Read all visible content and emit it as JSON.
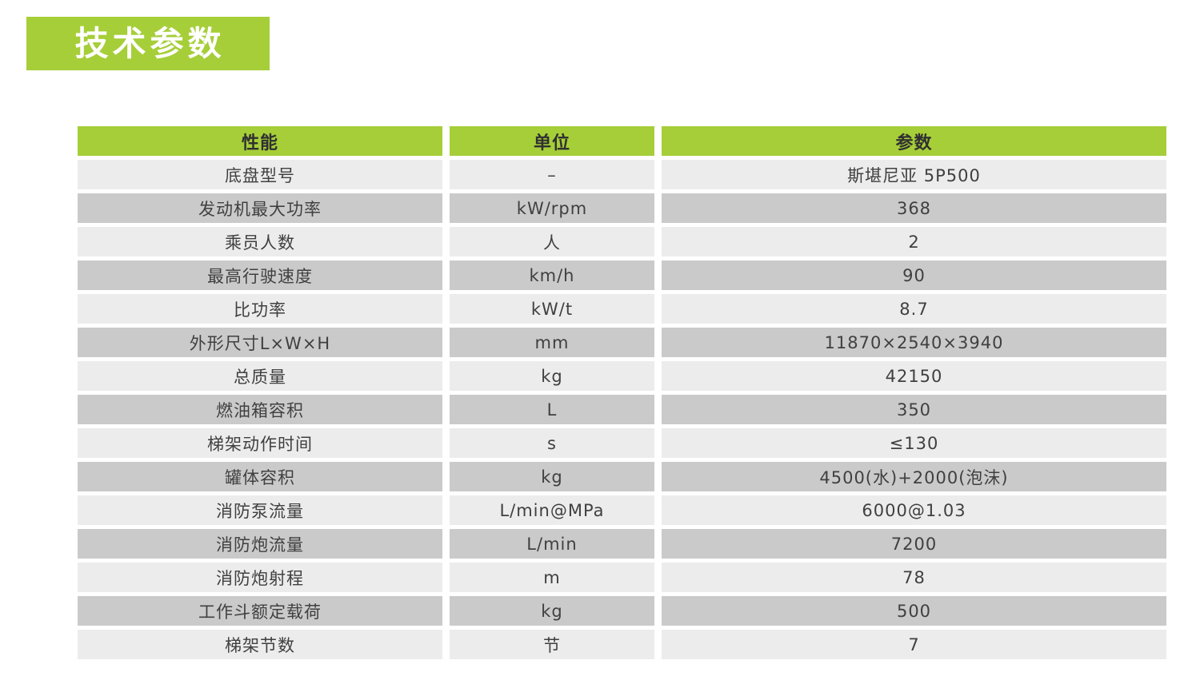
{
  "title": {
    "text": "技术参数"
  },
  "colors": {
    "accent_green": "#a6ce39",
    "row_light": "#ececec",
    "row_dark": "#cacaca",
    "title_text": "#ffffff",
    "cell_text": "#404040"
  },
  "table": {
    "headers": [
      "性能",
      "单位",
      "参数"
    ],
    "rows": [
      {
        "name": "底盘型号",
        "unit": "–",
        "value": "斯堪尼亚 5P500"
      },
      {
        "name": "发动机最大功率",
        "unit": "kW/rpm",
        "value": "368"
      },
      {
        "name": "乘员人数",
        "unit": "人",
        "value": "2"
      },
      {
        "name": "最高行驶速度",
        "unit": "km/h",
        "value": "90"
      },
      {
        "name": "比功率",
        "unit": "kW/t",
        "value": "8.7"
      },
      {
        "name": "外形尺寸L×W×H",
        "unit": "mm",
        "value": "11870×2540×3940"
      },
      {
        "name": "总质量",
        "unit": "kg",
        "value": "42150"
      },
      {
        "name": "燃油箱容积",
        "unit": "L",
        "value": "350"
      },
      {
        "name": "梯架动作时间",
        "unit": "s",
        "value": "≤130"
      },
      {
        "name": "罐体容积",
        "unit": "kg",
        "value": "4500(水)+2000(泡沫)"
      },
      {
        "name": "消防泵流量",
        "unit": "L/min@MPa",
        "value": "6000@1.03"
      },
      {
        "name": "消防炮流量",
        "unit": "L/min",
        "value": "7200"
      },
      {
        "name": "消防炮射程",
        "unit": "m",
        "value": "78"
      },
      {
        "name": "工作斗额定载荷",
        "unit": "kg",
        "value": "500"
      },
      {
        "name": "梯架节数",
        "unit": "节",
        "value": "7"
      }
    ]
  }
}
